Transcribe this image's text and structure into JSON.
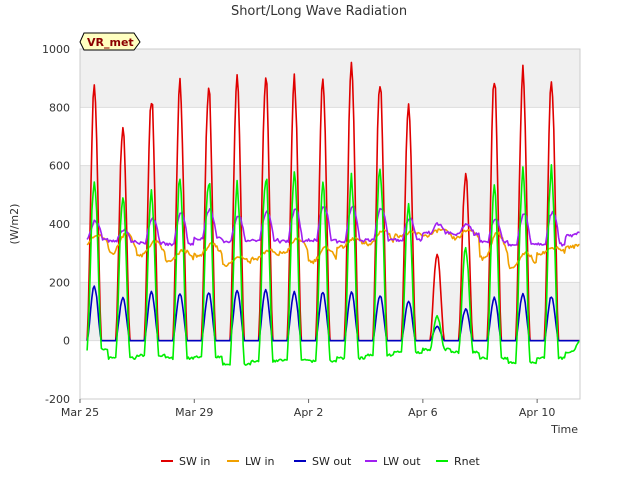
{
  "chart_data": {
    "type": "line",
    "title": "Short/Long Wave Radiation",
    "xlabel": "Time",
    "ylabel": "(W/m2)",
    "badge": "VR_met",
    "ylim": [
      -200,
      1000
    ],
    "yticks": [
      -200,
      0,
      200,
      400,
      600,
      800,
      1000
    ],
    "xlim": [
      "2025-03-25",
      "2025-04-11T12:00"
    ],
    "xticks": [
      {
        "date": "2025-03-25",
        "label": "Mar 25"
      },
      {
        "date": "2025-03-29",
        "label": "Mar 29"
      },
      {
        "date": "2025-04-02",
        "label": "Apr 2"
      },
      {
        "date": "2025-04-06",
        "label": "Apr 6"
      },
      {
        "date": "2025-04-10",
        "label": "Apr 10"
      }
    ],
    "background_bands": true,
    "legend_position": "bottom",
    "days": [
      "2025-03-25",
      "2025-03-26",
      "2025-03-27",
      "2025-03-28",
      "2025-03-29",
      "2025-03-30",
      "2025-03-31",
      "2025-04-01",
      "2025-04-02",
      "2025-04-03",
      "2025-04-04",
      "2025-04-05",
      "2025-04-06",
      "2025-04-07",
      "2025-04-08",
      "2025-04-09",
      "2025-04-10",
      "2025-04-11"
    ],
    "series": [
      {
        "name": "SW in",
        "color": "#e00000",
        "daily_peak": [
          890,
          760,
          860,
          900,
          900,
          925,
          935,
          925,
          920,
          955,
          915,
          840,
          310,
          580,
          920,
          945,
          930,
          0
        ],
        "night": 0
      },
      {
        "name": "LW in",
        "color": "#f0a000",
        "daily_min": [
          330,
          300,
          290,
          270,
          290,
          260,
          280,
          300,
          270,
          320,
          330,
          360,
          360,
          350,
          280,
          250,
          300,
          320
        ],
        "daily_max": [
          360,
          370,
          340,
          310,
          330,
          290,
          310,
          350,
          320,
          350,
          380,
          370,
          380,
          380,
          370,
          300,
          320,
          330
        ]
      },
      {
        "name": "SW out",
        "color": "#0000c0",
        "daily_peak": [
          190,
          150,
          170,
          165,
          170,
          175,
          175,
          170,
          170,
          170,
          160,
          140,
          50,
          110,
          150,
          165,
          155,
          0
        ],
        "night": 0
      },
      {
        "name": "LW out",
        "color": "#a020f0",
        "daily_min": [
          350,
          340,
          335,
          330,
          350,
          340,
          345,
          340,
          345,
          340,
          345,
          345,
          370,
          365,
          340,
          330,
          330,
          360
        ],
        "daily_max": [
          410,
          380,
          420,
          440,
          450,
          430,
          440,
          450,
          460,
          460,
          455,
          420,
          400,
          400,
          420,
          435,
          440,
          370
        ]
      },
      {
        "name": "Rnet",
        "color": "#00ee00",
        "daily_peak": [
          580,
          520,
          520,
          580,
          580,
          560,
          595,
          600,
          580,
          580,
          610,
          480,
          90,
          330,
          560,
          620,
          610,
          0
        ],
        "daily_night": [
          -30,
          -60,
          -50,
          -60,
          -55,
          -80,
          -70,
          -65,
          -70,
          -60,
          -50,
          -40,
          -30,
          -40,
          -60,
          -75,
          -60,
          -40
        ]
      }
    ]
  }
}
